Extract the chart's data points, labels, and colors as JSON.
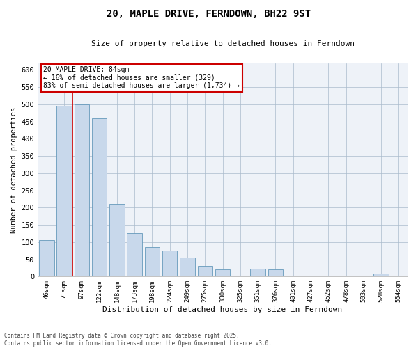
{
  "title_line1": "20, MAPLE DRIVE, FERNDOWN, BH22 9ST",
  "title_line2": "Size of property relative to detached houses in Ferndown",
  "xlabel": "Distribution of detached houses by size in Ferndown",
  "ylabel": "Number of detached properties",
  "footnote1": "Contains HM Land Registry data © Crown copyright and database right 2025.",
  "footnote2": "Contains public sector information licensed under the Open Government Licence v3.0.",
  "annotation_title": "20 MAPLE DRIVE: 84sqm",
  "annotation_line1": "← 16% of detached houses are smaller (329)",
  "annotation_line2": "83% of semi-detached houses are larger (1,734) →",
  "bar_color": "#c8d8eb",
  "bar_edge_color": "#6699bb",
  "vline_color": "#cc0000",
  "annotation_box_color": "#cc0000",
  "background_color": "#eef2f8",
  "categories": [
    "46sqm",
    "71sqm",
    "97sqm",
    "122sqm",
    "148sqm",
    "173sqm",
    "198sqm",
    "224sqm",
    "249sqm",
    "275sqm",
    "300sqm",
    "325sqm",
    "351sqm",
    "376sqm",
    "401sqm",
    "427sqm",
    "452sqm",
    "478sqm",
    "503sqm",
    "528sqm",
    "554sqm"
  ],
  "values": [
    105,
    495,
    500,
    460,
    210,
    125,
    85,
    75,
    55,
    30,
    20,
    0,
    22,
    20,
    0,
    2,
    0,
    0,
    0,
    8,
    0
  ],
  "vline_x": 1.48,
  "ylim": [
    0,
    620
  ],
  "yticks": [
    0,
    50,
    100,
    150,
    200,
    250,
    300,
    350,
    400,
    450,
    500,
    550,
    600
  ]
}
